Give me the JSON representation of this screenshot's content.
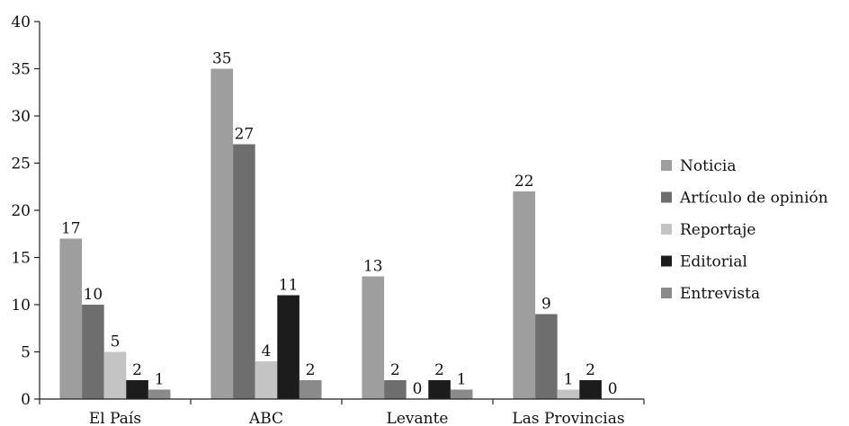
{
  "chart_data": {
    "type": "bar",
    "categories": [
      "El País",
      "ABC",
      "Levante",
      "Las Provincias"
    ],
    "series": [
      {
        "name": "Noticia",
        "values": [
          17,
          35,
          13,
          22
        ],
        "color": "#9e9e9e"
      },
      {
        "name": "Artículo de opinión",
        "values": [
          10,
          27,
          2,
          9
        ],
        "color": "#6e6e6e"
      },
      {
        "name": "Reportaje",
        "values": [
          5,
          4,
          0,
          1
        ],
        "color": "#c4c4c4"
      },
      {
        "name": "Editorial",
        "values": [
          2,
          11,
          2,
          2
        ],
        "color": "#1c1c1c"
      },
      {
        "name": "Entrevista",
        "values": [
          1,
          2,
          1,
          0
        ],
        "color": "#8a8a8a"
      }
    ],
    "title": "",
    "xlabel": "",
    "ylabel": "",
    "ylim": [
      0,
      40
    ],
    "yticks": [
      0,
      5,
      10,
      15,
      20,
      25,
      30,
      35,
      40
    ],
    "grid": false,
    "legend_position": "right",
    "data_labels": true
  }
}
